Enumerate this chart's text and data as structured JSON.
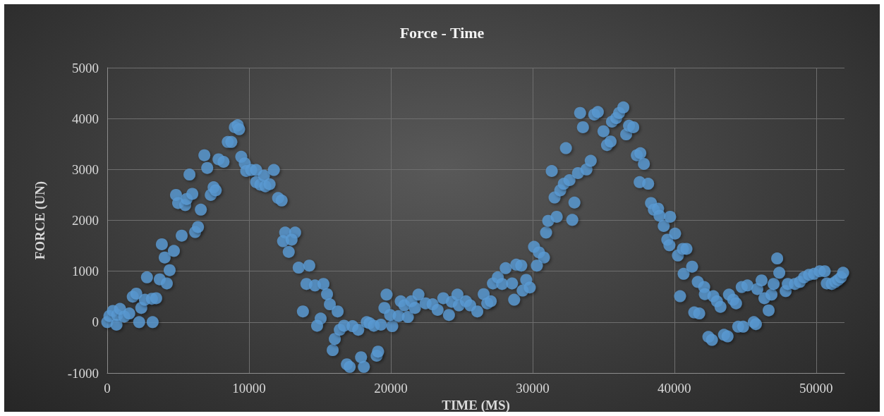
{
  "chart_data": {
    "type": "scatter",
    "title": "Force - Time",
    "xlabel": "TIME (MS)",
    "ylabel": "FORCE (UN)",
    "xlim": [
      0,
      52000
    ],
    "xticks": [
      0,
      10000,
      20000,
      30000,
      40000,
      50000
    ],
    "ylim": [
      -1000,
      5000
    ],
    "yticks": [
      -1000,
      0,
      1000,
      2000,
      3000,
      4000,
      5000
    ],
    "grid": true,
    "marker": "circle",
    "series": [
      {
        "color": "#5b9bd5",
        "x": [
          0,
          150,
          400,
          700,
          650,
          900,
          1200,
          1550,
          1800,
          2050,
          2250,
          2400,
          2650,
          2800,
          3150,
          3450,
          3200,
          3700,
          3850,
          4050,
          4200,
          4400,
          4700,
          4850,
          5000,
          5250,
          5500,
          5600,
          5800,
          6000,
          6200,
          6400,
          6600,
          6850,
          7050,
          7300,
          7500,
          7650,
          7850,
          8200,
          8500,
          8750,
          9000,
          9200,
          9300,
          9450,
          9700,
          9800,
          10150,
          10500,
          10500,
          10800,
          11050,
          11150,
          11450,
          11750,
          12050,
          12300,
          12550,
          13250,
          12400,
          13000,
          12800,
          13500,
          14250,
          13800,
          14050,
          14650,
          15250,
          15500,
          15700,
          16250,
          15050,
          14800,
          15900,
          16050,
          16400,
          16700,
          16900,
          17100,
          17300,
          17700,
          17900,
          18100,
          18300,
          18500,
          18800,
          19000,
          19100,
          19300,
          19700,
          19550,
          20100,
          19950,
          20550,
          20700,
          20950,
          21200,
          21450,
          21950,
          21700,
          22450,
          22950,
          23300,
          23700,
          24100,
          24300,
          24700,
          24800,
          25300,
          25600,
          26100,
          26550,
          26800,
          27050,
          27200,
          27550,
          27850,
          28100,
          28550,
          28700,
          28850,
          29200,
          29550,
          29300,
          29800,
          30100,
          30450,
          30800,
          30300,
          30950,
          31100,
          31700,
          32800,
          32950,
          31550,
          31950,
          32200,
          32600,
          33200,
          33800,
          34100,
          31350,
          32350,
          33350,
          33550,
          34350,
          34600,
          35000,
          35250,
          35500,
          35600,
          35900,
          36100,
          36400,
          36600,
          36800,
          37100,
          37350,
          37600,
          37850,
          37550,
          38150,
          38350,
          38550,
          38850,
          38950,
          39250,
          39700,
          39500,
          39650,
          40050,
          40250,
          40600,
          40850,
          40650,
          41250,
          40400,
          41650,
          42100,
          42150,
          42750,
          43000,
          43250,
          41400,
          41750,
          43850,
          44150,
          44350,
          42400,
          42650,
          43500,
          43750,
          44500,
          44850,
          45600,
          45750,
          44750,
          45150,
          45850,
          46150,
          46350,
          46650,
          46850,
          47000,
          47250,
          47400,
          47850,
          48000,
          48500,
          48850,
          49150,
          49500,
          49850,
          50250,
          50600,
          50750,
          51100,
          51350,
          51550,
          51750,
          51900
        ],
        "values": [
          0,
          120,
          220,
          140,
          -50,
          260,
          110,
          170,
          500,
          560,
          0,
          280,
          440,
          880,
          460,
          470,
          0,
          840,
          1530,
          1270,
          760,
          1020,
          1400,
          2500,
          2340,
          1700,
          2300,
          2420,
          2900,
          2520,
          1770,
          1870,
          2210,
          3280,
          3030,
          2500,
          2650,
          2590,
          3200,
          3150,
          3540,
          3540,
          3830,
          3870,
          3790,
          3250,
          3120,
          2970,
          2990,
          2990,
          2750,
          2700,
          2880,
          2670,
          2710,
          2990,
          2440,
          2390,
          1760,
          1760,
          1590,
          1620,
          1380,
          1070,
          1110,
          210,
          750,
          720,
          750,
          550,
          350,
          210,
          70,
          -70,
          -550,
          -330,
          -150,
          -70,
          -830,
          -880,
          -80,
          -150,
          -690,
          -880,
          0,
          -20,
          -70,
          -660,
          -580,
          -50,
          540,
          280,
          -80,
          140,
          120,
          410,
          330,
          100,
          410,
          540,
          280,
          370,
          350,
          240,
          470,
          140,
          400,
          540,
          330,
          410,
          330,
          210,
          550,
          370,
          410,
          760,
          880,
          750,
          1060,
          760,
          440,
          1130,
          1110,
          830,
          620,
          680,
          1480,
          1370,
          1270,
          1110,
          1760,
          1990,
          2070,
          2010,
          2350,
          2450,
          2590,
          2720,
          2790,
          2930,
          3000,
          3170,
          2970,
          3420,
          4110,
          3830,
          4080,
          4130,
          3750,
          3480,
          3550,
          3940,
          4010,
          4110,
          4220,
          3690,
          3860,
          3830,
          3280,
          3320,
          3110,
          2750,
          2720,
          2340,
          2210,
          2230,
          2090,
          1890,
          2070,
          1620,
          1510,
          1740,
          1310,
          1440,
          1440,
          950,
          1090,
          510,
          790,
          690,
          550,
          510,
          410,
          300,
          190,
          170,
          540,
          440,
          370,
          -290,
          -350,
          -250,
          -280,
          -90,
          -90,
          0,
          -40,
          690,
          720,
          650,
          820,
          470,
          230,
          540,
          750,
          1250,
          970,
          610,
          750,
          750,
          790,
          880,
          930,
          950,
          1000,
          1000,
          760,
          750,
          790,
          830,
          880,
          970
        ]
      }
    ]
  }
}
